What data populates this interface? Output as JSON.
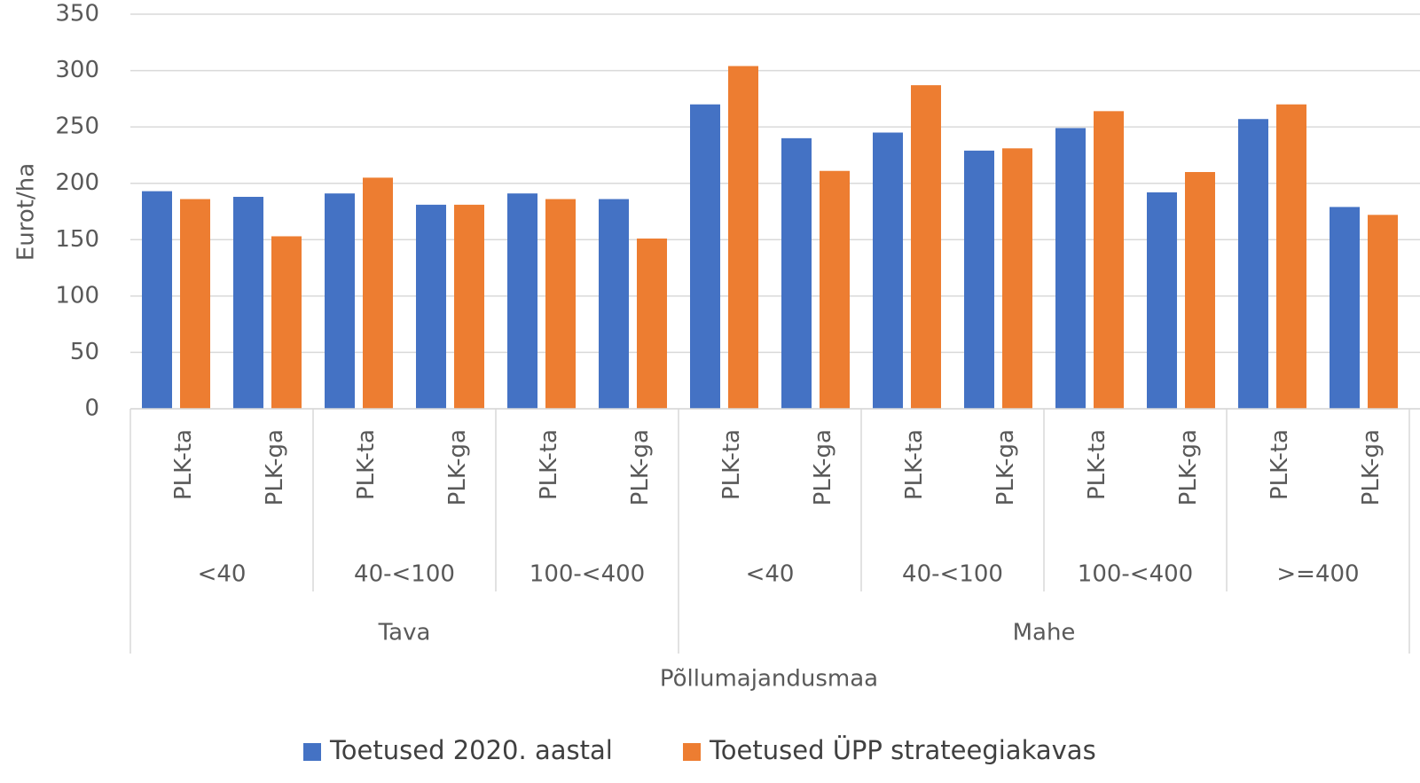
{
  "chart_data": {
    "type": "bar",
    "y_label": "Eurot/ha",
    "x_label": "Põllumajandusmaa",
    "groups": [
      {
        "name": "Tava",
        "subgroups": [
          {
            "name": "<40",
            "categories": [
              "PLK-ta",
              "PLK-ga"
            ]
          },
          {
            "name": "40-<100",
            "categories": [
              "PLK-ta",
              "PLK-ga"
            ]
          },
          {
            "name": "100-<400",
            "categories": [
              "PLK-ta",
              "PLK-ga"
            ]
          }
        ]
      },
      {
        "name": "Mahe",
        "subgroups": [
          {
            "name": "<40",
            "categories": [
              "PLK-ta",
              "PLK-ga"
            ]
          },
          {
            "name": "40-<100",
            "categories": [
              "PLK-ta",
              "PLK-ga"
            ]
          },
          {
            "name": "100-<400",
            "categories": [
              "PLK-ta",
              "PLK-ga"
            ]
          },
          {
            "name": ">=400",
            "categories": [
              "PLK-ta",
              "PLK-ga"
            ]
          }
        ]
      }
    ],
    "series": [
      {
        "name": "Toetused 2020. aastal",
        "color": "#4472c4",
        "values": [
          193,
          188,
          191,
          181,
          191,
          186,
          270,
          240,
          245,
          229,
          249,
          192,
          257,
          179
        ]
      },
      {
        "name": "Toetused ÜPP strateegiakavas",
        "color": "#ed7d31",
        "values": [
          186,
          153,
          205,
          181,
          186,
          151,
          304,
          211,
          287,
          231,
          264,
          210,
          270,
          172
        ]
      }
    ],
    "ylim": [
      0,
      350
    ],
    "yticks": [
      0,
      50,
      100,
      150,
      200,
      250,
      300,
      350
    ],
    "grid": true,
    "legend": "bottom"
  }
}
